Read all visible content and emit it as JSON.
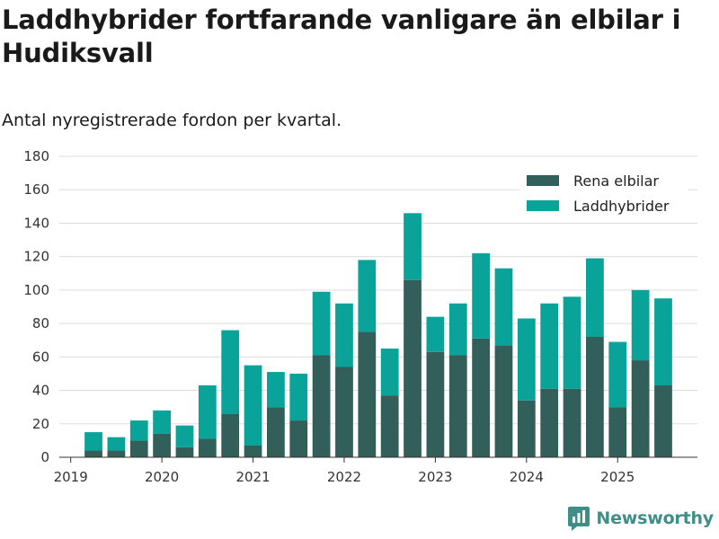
{
  "header": {
    "title": "Laddhybrider fortfarande vanligare än elbilar i Hudiksvall",
    "subtitle": "Antal nyregistrerade fordon per kvartal."
  },
  "brand": {
    "name": "Newsworthy",
    "accent": "#3f8f88"
  },
  "colors": {
    "elbilar": "#335f5a",
    "laddhybrider": "#0aa39a",
    "grid": "#dddddd"
  },
  "chart_data": {
    "type": "bar",
    "stacked": true,
    "title": "Laddhybrider fortfarande vanligare än elbilar i Hudiksvall",
    "subtitle": "Antal nyregistrerade fordon per kvartal.",
    "xlabel": "",
    "ylabel": "",
    "ylim": [
      0,
      180
    ],
    "yticks": [
      0,
      20,
      40,
      60,
      80,
      100,
      120,
      140,
      160,
      180
    ],
    "xlim": [
      2018.875,
      2025.875
    ],
    "xticks": [
      2019,
      2020,
      2021,
      2022,
      2023,
      2024,
      2025
    ],
    "legend_position": "top-right",
    "x": [
      2019.25,
      2019.5,
      2019.75,
      2020.0,
      2020.25,
      2020.5,
      2020.75,
      2021.0,
      2021.25,
      2021.5,
      2021.75,
      2022.0,
      2022.25,
      2022.5,
      2022.75,
      2023.0,
      2023.25,
      2023.5,
      2023.75,
      2024.0,
      2024.25,
      2024.5,
      2024.75,
      2025.0,
      2025.25,
      2025.5
    ],
    "series": [
      {
        "name": "Rena elbilar",
        "color": "#335f5a",
        "values": [
          4,
          4,
          10,
          14,
          6,
          11,
          26,
          7,
          30,
          22,
          61,
          54,
          75,
          37,
          106,
          63,
          61,
          71,
          67,
          34,
          41,
          41,
          72,
          30,
          58,
          43
        ]
      },
      {
        "name": "Laddhybrider",
        "color": "#0aa39a",
        "values": [
          11,
          8,
          12,
          14,
          13,
          32,
          50,
          48,
          21,
          28,
          38,
          38,
          43,
          28,
          40,
          21,
          31,
          51,
          46,
          49,
          51,
          55,
          47,
          39,
          42,
          52
        ]
      }
    ]
  }
}
